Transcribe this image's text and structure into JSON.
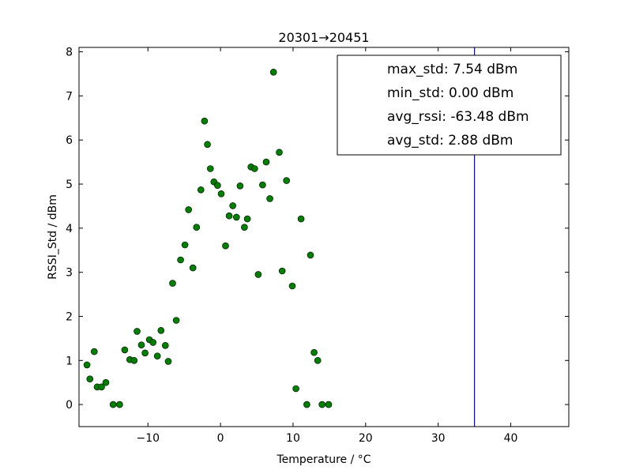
{
  "chart_data": {
    "type": "scatter",
    "title": "20301→20451",
    "xlabel": "Temperature / °C",
    "ylabel": "RSSI_Std / dBm",
    "xlim": [
      -19.5,
      48
    ],
    "ylim": [
      -0.5,
      8.1
    ],
    "x_ticks": [
      -10,
      0,
      10,
      20,
      30,
      40
    ],
    "x_tick_labels": [
      "−10",
      "0",
      "10",
      "20",
      "30",
      "40"
    ],
    "y_ticks": [
      0,
      1,
      2,
      3,
      4,
      5,
      6,
      7,
      8
    ],
    "y_tick_labels": [
      "0",
      "1",
      "2",
      "3",
      "4",
      "5",
      "6",
      "7",
      "8"
    ],
    "grid": false,
    "marker_color": "#007f00",
    "vline": {
      "x": 35,
      "color": "#0000ff"
    },
    "stats": [
      "max_std: 7.54 dBm",
      "min_std: 0.00 dBm",
      "avg_rssi: -63.48 dBm",
      "avg_std: 2.88 dBm"
    ],
    "stats_placement": "top-right",
    "series": [
      {
        "points": [
          [
            -18.4,
            0.9
          ],
          [
            -18.0,
            0.58
          ],
          [
            -17.4,
            1.2
          ],
          [
            -17.0,
            0.4
          ],
          [
            -16.4,
            0.4
          ],
          [
            -15.8,
            0.5
          ],
          [
            -14.8,
            0.0
          ],
          [
            -13.9,
            0.0
          ],
          [
            -13.2,
            1.24
          ],
          [
            -12.5,
            1.02
          ],
          [
            -11.9,
            1.0
          ],
          [
            -11.5,
            1.66
          ],
          [
            -10.9,
            1.35
          ],
          [
            -10.4,
            1.17
          ],
          [
            -9.8,
            1.47
          ],
          [
            -9.3,
            1.41
          ],
          [
            -8.7,
            1.1
          ],
          [
            -8.2,
            1.68
          ],
          [
            -7.6,
            1.34
          ],
          [
            -7.2,
            0.98
          ],
          [
            -6.6,
            2.75
          ],
          [
            -6.1,
            1.91
          ],
          [
            -5.5,
            3.28
          ],
          [
            -4.9,
            3.62
          ],
          [
            -4.4,
            4.42
          ],
          [
            -3.8,
            3.1
          ],
          [
            -3.3,
            4.02
          ],
          [
            -2.7,
            4.87
          ],
          [
            -2.2,
            6.43
          ],
          [
            -1.8,
            5.9
          ],
          [
            -1.4,
            5.35
          ],
          [
            -0.9,
            5.05
          ],
          [
            -0.4,
            4.97
          ],
          [
            0.1,
            4.78
          ],
          [
            0.7,
            3.6
          ],
          [
            1.2,
            4.28
          ],
          [
            1.7,
            4.51
          ],
          [
            2.2,
            4.25
          ],
          [
            2.7,
            4.96
          ],
          [
            3.3,
            4.02
          ],
          [
            3.7,
            4.21
          ],
          [
            4.2,
            5.39
          ],
          [
            4.7,
            5.35
          ],
          [
            5.2,
            2.95
          ],
          [
            5.8,
            4.98
          ],
          [
            6.3,
            5.5
          ],
          [
            6.8,
            4.67
          ],
          [
            7.3,
            7.54
          ],
          [
            8.1,
            5.72
          ],
          [
            8.5,
            3.03
          ],
          [
            9.1,
            5.08
          ],
          [
            9.9,
            2.69
          ],
          [
            10.4,
            0.36
          ],
          [
            11.1,
            4.21
          ],
          [
            11.9,
            0.0
          ],
          [
            12.4,
            3.39
          ],
          [
            12.9,
            1.18
          ],
          [
            13.4,
            1.0
          ],
          [
            14.0,
            0.0
          ],
          [
            14.9,
            0.0
          ]
        ]
      }
    ]
  }
}
